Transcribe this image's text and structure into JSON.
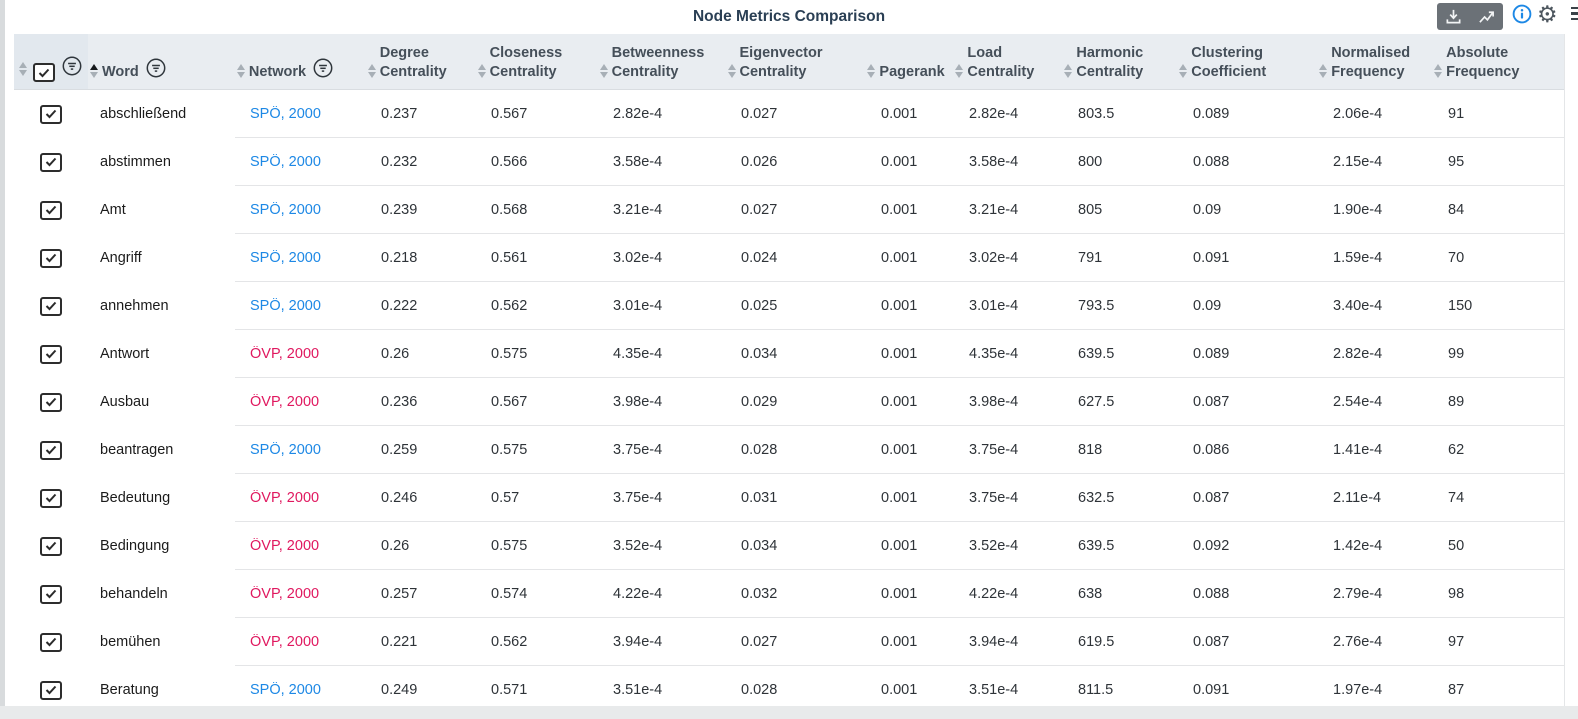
{
  "title": "Node Metrics Comparison",
  "accent_colors": {
    "spo_blue": "#1d88e5",
    "ovp_pink": "#e0185f"
  },
  "toolbar": {
    "buttons": [
      {
        "icon": "download-icon"
      },
      {
        "icon": "chart-line-icon"
      }
    ],
    "info_icon": "info-icon",
    "settings_icon": "gear-icon",
    "settings_glyph": "⚙",
    "overflow_icon": "menu-icon"
  },
  "select_all": {
    "checked": true
  },
  "columns": [
    {
      "key": "select",
      "label": "",
      "sort": "none",
      "has_filter": true
    },
    {
      "key": "word",
      "label": "Word",
      "sort": "asc",
      "has_filter": true
    },
    {
      "key": "network",
      "label": "Network",
      "sort": "none",
      "has_filter": true
    },
    {
      "key": "degree",
      "label": "Degree Centrality",
      "sort": "none",
      "has_filter": false
    },
    {
      "key": "closeness",
      "label": "Closeness Centrality",
      "sort": "none",
      "has_filter": false
    },
    {
      "key": "betweenness",
      "label": "Betweenness Centrality",
      "sort": "none",
      "has_filter": false
    },
    {
      "key": "eigenvector",
      "label": "Eigenvector Centrality",
      "sort": "none",
      "has_filter": false
    },
    {
      "key": "pagerank",
      "label": "Pagerank",
      "sort": "none",
      "has_filter": false
    },
    {
      "key": "load",
      "label": "Load Centrality",
      "sort": "none",
      "has_filter": false
    },
    {
      "key": "harmonic",
      "label": "Harmonic Centrality",
      "sort": "none",
      "has_filter": false
    },
    {
      "key": "clustering",
      "label": "Clustering Coefficient",
      "sort": "none",
      "has_filter": false
    },
    {
      "key": "normalised",
      "label": "Normalised Frequency",
      "sort": "none",
      "has_filter": false
    },
    {
      "key": "absolute",
      "label": "Absolute Frequency",
      "sort": "none",
      "has_filter": false
    }
  ],
  "rows": [
    {
      "checked": true,
      "word": "abschließend",
      "network": "SPÖ, 2000",
      "party": "spo",
      "degree": "0.237",
      "closeness": "0.567",
      "betweenness": "2.82e-4",
      "eigenvector": "0.027",
      "pagerank": "0.001",
      "load": "2.82e-4",
      "harmonic": "803.5",
      "clustering": "0.089",
      "normalised": "2.06e-4",
      "absolute": "91"
    },
    {
      "checked": true,
      "word": "abstimmen",
      "network": "SPÖ, 2000",
      "party": "spo",
      "degree": "0.232",
      "closeness": "0.566",
      "betweenness": "3.58e-4",
      "eigenvector": "0.026",
      "pagerank": "0.001",
      "load": "3.58e-4",
      "harmonic": "800",
      "clustering": "0.088",
      "normalised": "2.15e-4",
      "absolute": "95"
    },
    {
      "checked": true,
      "word": "Amt",
      "network": "SPÖ, 2000",
      "party": "spo",
      "degree": "0.239",
      "closeness": "0.568",
      "betweenness": "3.21e-4",
      "eigenvector": "0.027",
      "pagerank": "0.001",
      "load": "3.21e-4",
      "harmonic": "805",
      "clustering": "0.09",
      "normalised": "1.90e-4",
      "absolute": "84"
    },
    {
      "checked": true,
      "word": "Angriff",
      "network": "SPÖ, 2000",
      "party": "spo",
      "degree": "0.218",
      "closeness": "0.561",
      "betweenness": "3.02e-4",
      "eigenvector": "0.024",
      "pagerank": "0.001",
      "load": "3.02e-4",
      "harmonic": "791",
      "clustering": "0.091",
      "normalised": "1.59e-4",
      "absolute": "70"
    },
    {
      "checked": true,
      "word": "annehmen",
      "network": "SPÖ, 2000",
      "party": "spo",
      "degree": "0.222",
      "closeness": "0.562",
      "betweenness": "3.01e-4",
      "eigenvector": "0.025",
      "pagerank": "0.001",
      "load": "3.01e-4",
      "harmonic": "793.5",
      "clustering": "0.09",
      "normalised": "3.40e-4",
      "absolute": "150"
    },
    {
      "checked": true,
      "word": "Antwort",
      "network": "ÖVP, 2000",
      "party": "ovp",
      "degree": "0.26",
      "closeness": "0.575",
      "betweenness": "4.35e-4",
      "eigenvector": "0.034",
      "pagerank": "0.001",
      "load": "4.35e-4",
      "harmonic": "639.5",
      "clustering": "0.089",
      "normalised": "2.82e-4",
      "absolute": "99"
    },
    {
      "checked": true,
      "word": "Ausbau",
      "network": "ÖVP, 2000",
      "party": "ovp",
      "degree": "0.236",
      "closeness": "0.567",
      "betweenness": "3.98e-4",
      "eigenvector": "0.029",
      "pagerank": "0.001",
      "load": "3.98e-4",
      "harmonic": "627.5",
      "clustering": "0.087",
      "normalised": "2.54e-4",
      "absolute": "89"
    },
    {
      "checked": true,
      "word": "beantragen",
      "network": "SPÖ, 2000",
      "party": "spo",
      "degree": "0.259",
      "closeness": "0.575",
      "betweenness": "3.75e-4",
      "eigenvector": "0.028",
      "pagerank": "0.001",
      "load": "3.75e-4",
      "harmonic": "818",
      "clustering": "0.086",
      "normalised": "1.41e-4",
      "absolute": "62"
    },
    {
      "checked": true,
      "word": "Bedeutung",
      "network": "ÖVP, 2000",
      "party": "ovp",
      "degree": "0.246",
      "closeness": "0.57",
      "betweenness": "3.75e-4",
      "eigenvector": "0.031",
      "pagerank": "0.001",
      "load": "3.75e-4",
      "harmonic": "632.5",
      "clustering": "0.087",
      "normalised": "2.11e-4",
      "absolute": "74"
    },
    {
      "checked": true,
      "word": "Bedingung",
      "network": "ÖVP, 2000",
      "party": "ovp",
      "degree": "0.26",
      "closeness": "0.575",
      "betweenness": "3.52e-4",
      "eigenvector": "0.034",
      "pagerank": "0.001",
      "load": "3.52e-4",
      "harmonic": "639.5",
      "clustering": "0.092",
      "normalised": "1.42e-4",
      "absolute": "50"
    },
    {
      "checked": true,
      "word": "behandeln",
      "network": "ÖVP, 2000",
      "party": "ovp",
      "degree": "0.257",
      "closeness": "0.574",
      "betweenness": "4.22e-4",
      "eigenvector": "0.032",
      "pagerank": "0.001",
      "load": "4.22e-4",
      "harmonic": "638",
      "clustering": "0.088",
      "normalised": "2.79e-4",
      "absolute": "98"
    },
    {
      "checked": true,
      "word": "bemühen",
      "network": "ÖVP, 2000",
      "party": "ovp",
      "degree": "0.221",
      "closeness": "0.562",
      "betweenness": "3.94e-4",
      "eigenvector": "0.027",
      "pagerank": "0.001",
      "load": "3.94e-4",
      "harmonic": "619.5",
      "clustering": "0.087",
      "normalised": "2.76e-4",
      "absolute": "97"
    },
    {
      "checked": true,
      "word": "Beratung",
      "network": "SPÖ, 2000",
      "party": "spo",
      "degree": "0.249",
      "closeness": "0.571",
      "betweenness": "3.51e-4",
      "eigenvector": "0.028",
      "pagerank": "0.001",
      "load": "3.51e-4",
      "harmonic": "811.5",
      "clustering": "0.091",
      "normalised": "1.97e-4",
      "absolute": "87"
    }
  ]
}
